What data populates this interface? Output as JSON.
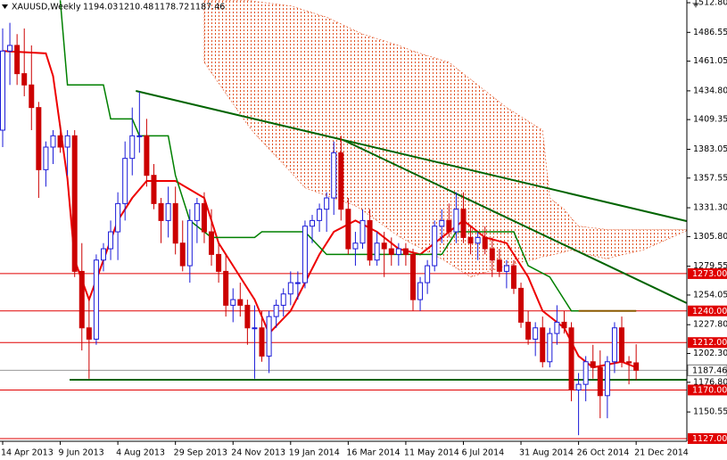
{
  "chart_data": {
    "type": "candlestick",
    "title": "XAUUSD,Weekly",
    "categories": [
      "14 Apr 2013",
      null,
      null,
      null,
      null,
      null,
      null,
      null,
      "9 Jun 2013",
      null,
      null,
      null,
      null,
      null,
      null,
      null,
      "4 Aug 2013",
      null,
      null,
      null,
      null,
      null,
      null,
      null,
      "29 Sep 2013",
      null,
      null,
      null,
      null,
      null,
      null,
      null,
      "24 Nov 2013",
      null,
      null,
      null,
      null,
      null,
      null,
      null,
      "19 Jan 2014",
      null,
      null,
      null,
      null,
      null,
      null,
      null,
      "16 Mar 2014",
      null,
      null,
      null,
      null,
      null,
      null,
      null,
      "11 May 2014",
      null,
      null,
      null,
      null,
      null,
      null,
      null,
      "6 Jul 2014",
      null,
      null,
      null,
      null,
      null,
      null,
      null,
      "31 Aug 2014",
      null,
      null,
      null,
      null,
      null,
      null,
      null,
      "26 Oct 2014",
      null,
      null,
      null,
      null,
      null,
      null,
      null,
      "21 Dec 2014"
    ],
    "open": [
      1400,
      1470,
      1475,
      1450,
      1440,
      1420,
      1365,
      1385,
      1395,
      1385,
      1395,
      1275,
      1225,
      1215,
      1285,
      1295,
      1310,
      1335,
      1375,
      1395,
      1395,
      1360,
      1335,
      1320,
      1335,
      1300,
      1280,
      1320,
      1335,
      1310,
      1290,
      1275,
      1245,
      1250,
      1245,
      1225,
      1225,
      1200,
      1235,
      1245,
      1255,
      1265,
      1265,
      1315,
      1320,
      1330,
      1340,
      1380,
      1330,
      1295,
      1300,
      1320,
      1285,
      1300,
      1295,
      1290,
      1295,
      1290,
      1250,
      1265,
      1280,
      1315,
      1320,
      1310,
      1330,
      1305,
      1300,
      1305,
      1295,
      1285,
      1275,
      1280,
      1260,
      1230,
      1215,
      1225,
      1195,
      1220,
      1230,
      1225,
      1170,
      1175,
      1195,
      1190,
      1165,
      1195,
      1225,
      1195,
      1194.03
    ],
    "high": [
      1490,
      1495,
      1485,
      1490,
      1475,
      1425,
      1390,
      1400,
      1405,
      1400,
      1400,
      1300,
      1250,
      1290,
      1300,
      1320,
      1345,
      1390,
      1420,
      1434,
      1410,
      1370,
      1340,
      1350,
      1350,
      1320,
      1330,
      1340,
      1345,
      1330,
      1300,
      1290,
      1260,
      1265,
      1250,
      1245,
      1240,
      1240,
      1250,
      1260,
      1275,
      1275,
      1320,
      1325,
      1335,
      1345,
      1390,
      1395,
      1340,
      1310,
      1330,
      1330,
      1310,
      1310,
      1305,
      1300,
      1300,
      1295,
      1270,
      1285,
      1320,
      1330,
      1335,
      1345,
      1345,
      1315,
      1310,
      1315,
      1305,
      1295,
      1285,
      1285,
      1265,
      1240,
      1230,
      1235,
      1225,
      1245,
      1240,
      1230,
      1185,
      1200,
      1210,
      1205,
      1200,
      1230,
      1235,
      1200,
      1210.48
    ],
    "low": [
      1385,
      1440,
      1440,
      1430,
      1400,
      1340,
      1350,
      1370,
      1380,
      1360,
      1270,
      1205,
      1180,
      1210,
      1275,
      1285,
      1285,
      1320,
      1360,
      1380,
      1350,
      1330,
      1300,
      1305,
      1290,
      1275,
      1265,
      1300,
      1300,
      1280,
      1265,
      1235,
      1230,
      1235,
      1210,
      1180,
      1195,
      1185,
      1225,
      1235,
      1245,
      1250,
      1260,
      1300,
      1310,
      1310,
      1325,
      1320,
      1290,
      1280,
      1295,
      1280,
      1280,
      1270,
      1280,
      1280,
      1280,
      1240,
      1240,
      1255,
      1275,
      1300,
      1305,
      1300,
      1300,
      1290,
      1285,
      1290,
      1270,
      1270,
      1260,
      1255,
      1225,
      1210,
      1200,
      1190,
      1190,
      1210,
      1220,
      1160,
      1130,
      1160,
      1180,
      1145,
      1145,
      1185,
      1190,
      1175,
      1178.72
    ],
    "close": [
      1470,
      1475,
      1450,
      1440,
      1420,
      1365,
      1385,
      1395,
      1385,
      1395,
      1275,
      1225,
      1215,
      1285,
      1295,
      1310,
      1335,
      1375,
      1395,
      1395,
      1360,
      1335,
      1320,
      1335,
      1300,
      1280,
      1320,
      1335,
      1310,
      1290,
      1275,
      1245,
      1250,
      1245,
      1225,
      1225,
      1200,
      1235,
      1245,
      1255,
      1265,
      1265,
      1315,
      1320,
      1330,
      1340,
      1380,
      1330,
      1295,
      1300,
      1320,
      1285,
      1300,
      1295,
      1290,
      1295,
      1290,
      1250,
      1265,
      1280,
      1315,
      1320,
      1310,
      1330,
      1305,
      1300,
      1305,
      1295,
      1285,
      1275,
      1280,
      1260,
      1230,
      1215,
      1225,
      1195,
      1220,
      1230,
      1225,
      1170,
      1175,
      1195,
      1190,
      1165,
      1195,
      1225,
      1195,
      1194,
      1187.46
    ],
    "up_color": "#1a1ad8",
    "down_color": "#cc0000",
    "ylim": [
      1124.6,
      1515.2
    ],
    "yticks": [
      {
        "value": 1512.8,
        "label": "1512.80"
      },
      {
        "value": 1486.55,
        "label": "1486.55"
      },
      {
        "value": 1461.05,
        "label": "1461.05"
      },
      {
        "value": 1434.8,
        "label": "1434.80"
      },
      {
        "value": 1409.35,
        "label": "1409.35"
      },
      {
        "value": 1383.05,
        "label": "1383.05"
      },
      {
        "value": 1357.55,
        "label": "1357.55"
      },
      {
        "value": 1331.3,
        "label": "1331.30"
      },
      {
        "value": 1305.8,
        "label": "1305.80"
      },
      {
        "value": 1279.55,
        "label": "1279.55"
      },
      {
        "value": 1254.05,
        "label": "1254.05"
      },
      {
        "value": 1227.8,
        "label": "1227.80"
      },
      {
        "value": 1202.3,
        "label": "1202.30"
      },
      {
        "value": 1176.8,
        "label": "1176.80"
      },
      {
        "value": 1150.55,
        "label": "1150.55"
      }
    ],
    "levels": {
      "values": [
        1273,
        1240,
        1212,
        1170,
        1127
      ],
      "value_labels": [
        "1273.00",
        "1240.00",
        "1212.00",
        "1170.00",
        "1127.00"
      ],
      "color": "#e00000"
    },
    "cloud": {
      "color": "#e05020",
      "x": [
        28,
        34,
        35,
        40,
        42,
        45,
        49,
        50,
        55,
        57,
        61,
        62,
        65,
        66,
        69,
        70,
        74,
        75,
        76,
        78,
        79,
        80,
        84,
        85,
        89,
        95
      ],
      "upper": [
        1515,
        1515,
        1514,
        1510,
        1506,
        1500,
        1488,
        1485,
        1475,
        1470,
        1462,
        1460,
        1445,
        1440,
        1425,
        1420,
        1404,
        1400,
        1340,
        1330,
        1322,
        1315,
        1312,
        1312,
        1312,
        1312
      ],
      "lower": [
        1460,
        1405,
        1397,
        1363,
        1349,
        1342,
        1333,
        1329,
        1306,
        1299,
        1286,
        1282,
        1270,
        1272,
        1278,
        1280,
        1286,
        1288,
        1289,
        1292,
        1294,
        1292,
        1286,
        1288,
        1294,
        1311
      ]
    },
    "lines": [
      {
        "color": "#ee0000",
        "width": 2,
        "x": [
          0,
          6,
          7,
          9,
          10,
          12,
          16,
          18,
          20,
          24,
          28,
          30,
          33,
          35,
          37,
          40,
          42,
          44,
          46,
          49,
          52,
          55,
          58,
          62,
          64,
          67,
          70,
          73,
          75,
          78,
          80,
          82,
          86,
          88
        ],
        "values": [
          1470,
          1468,
          1448,
          1357,
          1285,
          1250,
          1320,
          1340,
          1355,
          1355,
          1340,
          1300,
          1270,
          1250,
          1220,
          1240,
          1265,
          1290,
          1310,
          1320,
          1310,
          1295,
          1290,
          1310,
          1320,
          1305,
          1300,
          1270,
          1240,
          1225,
          1200,
          1190,
          1195,
          1190
        ]
      },
      {
        "color": "#008000",
        "width": 1.5,
        "x": [
          8,
          9,
          14,
          15,
          18,
          19,
          23,
          24,
          26,
          29,
          35,
          36,
          42,
          45,
          61,
          63,
          71,
          73,
          76,
          79,
          88
        ],
        "values": [
          1515,
          1440,
          1440,
          1410,
          1410,
          1395,
          1395,
          1360,
          1320,
          1305,
          1305,
          1310,
          1310,
          1290,
          1290,
          1310,
          1310,
          1280,
          1270,
          1240,
          1240
        ]
      },
      {
        "color": "#006400",
        "width": 2,
        "x": [
          18.5,
          95
        ],
        "values": [
          1434.7,
          1319.5
        ]
      },
      {
        "color": "#006400",
        "width": 2,
        "x": [
          47.3,
          95
        ],
        "values": [
          1391.3,
          1247
        ]
      },
      {
        "color": "#006400",
        "width": 2,
        "x": [
          9.3,
          95
        ],
        "values": [
          1179,
          1179
        ]
      },
      {
        "color": "#8b5a00",
        "width": 2,
        "x": [
          80,
          88
        ],
        "values": [
          1240,
          1240
        ]
      }
    ]
  }
}
